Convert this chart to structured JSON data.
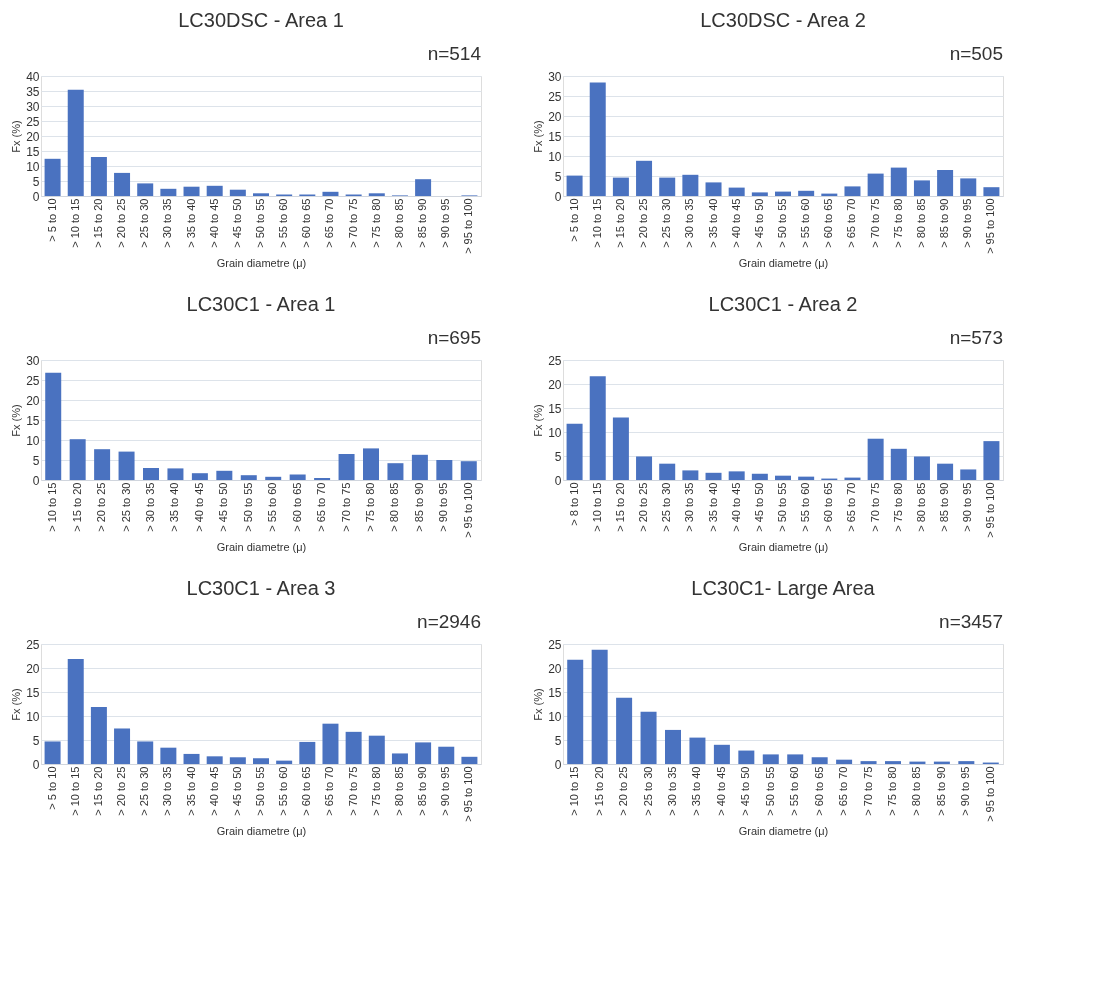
{
  "chart_data": [
    {
      "type": "bar",
      "title": "LC30DSC  - Area 1",
      "xlabel": "Grain diametre (μ)",
      "ylabel": "Fx (%)",
      "annotations": [
        "n=514"
      ],
      "color": "#4a72c0",
      "grid": "y",
      "ylim": [
        0,
        40
      ],
      "yticks": [
        0,
        5,
        10,
        15,
        20,
        25,
        30,
        35,
        40
      ],
      "categories": [
        "> 5 to 10",
        "> 10 to 15",
        "> 15 to 20",
        "> 20 to 25",
        "> 25 to 30",
        "> 30 to 35",
        "> 35 to 40",
        "> 40 to 45",
        "> 45 to 50",
        "> 50 to 55",
        "> 55 to 60",
        "> 60 to 65",
        "> 65 to 70",
        "> 70 to 75",
        "> 75 to 80",
        "> 80 to 85",
        "> 85 to 90",
        "> 90 to 95",
        "> 95 to 100"
      ],
      "values": [
        12.4,
        35.4,
        13.0,
        7.7,
        4.2,
        2.4,
        3.1,
        3.4,
        2.1,
        0.9,
        0.5,
        0.5,
        1.4,
        0.5,
        0.9,
        0.2,
        5.6,
        0,
        0.2
      ]
    },
    {
      "type": "bar",
      "title": "LC30DSC  - Area 2",
      "xlabel": "Grain diametre (μ)",
      "ylabel": "Fx (%)",
      "annotations": [
        "n=505"
      ],
      "color": "#4a72c0",
      "grid": "y",
      "ylim": [
        0,
        30
      ],
      "yticks": [
        0,
        5,
        10,
        15,
        20,
        25,
        30
      ],
      "categories": [
        "> 5 to 10",
        "> 10 to 15",
        "> 15 to 20",
        "> 20 to 25",
        "> 25 to 30",
        "> 30 to 35",
        "> 35 to 40",
        "> 40 to 45",
        "> 45 to 50",
        "> 50 to 55",
        "> 55 to 60",
        "> 60 to 65",
        "> 65 to 70",
        "> 70 to 75",
        "> 75 to 80",
        "> 80 to 85",
        "> 85 to 90",
        "> 90 to 95",
        "> 95 to 100"
      ],
      "values": [
        5.1,
        28.4,
        4.6,
        8.8,
        4.6,
        5.3,
        3.4,
        2.1,
        0.9,
        1.1,
        1.3,
        0.6,
        2.4,
        5.6,
        7.1,
        3.9,
        6.5,
        4.4,
        2.2
      ]
    },
    {
      "type": "bar",
      "title": "LC30C1 - Area 1",
      "xlabel": "Grain diametre (μ)",
      "ylabel": "Fx (%)",
      "annotations": [
        "n=695"
      ],
      "color": "#4a72c0",
      "grid": "y",
      "ylim": [
        0,
        30
      ],
      "yticks": [
        0,
        5,
        10,
        15,
        20,
        25,
        30
      ],
      "categories": [
        "> 10 to 15",
        "> 15 to 20",
        "> 20 to 25",
        "> 25 to 30",
        "> 30 to 35",
        "> 35 to 40",
        "> 40 to 45",
        "> 45 to 50",
        "> 50 to 55",
        "> 55 to 60",
        "> 60 to 65",
        "> 65 to 70",
        "> 70 to 75",
        "> 75 to 80",
        "> 80 to 85",
        "> 85 to 90",
        "> 90 to 95",
        "> 95 to 100"
      ],
      "values": [
        26.8,
        10.2,
        7.7,
        7.1,
        3.0,
        2.9,
        1.7,
        2.3,
        1.2,
        0.8,
        1.4,
        0.5,
        6.5,
        7.9,
        4.2,
        6.3,
        5.0,
        4.7
      ]
    },
    {
      "type": "bar",
      "title": "LC30C1 - Area 2",
      "xlabel": "Grain diametre (μ)",
      "ylabel": "Fx (%)",
      "annotations": [
        "n=573"
      ],
      "color": "#4a72c0",
      "grid": "y",
      "ylim": [
        0,
        25
      ],
      "yticks": [
        0,
        5,
        10,
        15,
        20,
        25
      ],
      "categories": [
        "> 8 to 10",
        "> 10 to 15",
        "> 15 to 20",
        "> 20 to 25",
        "> 25 to 30",
        "> 30 to 35",
        "> 35 to 40",
        "> 40 to 45",
        "> 45 to 50",
        "> 50 to 55",
        "> 55 to 60",
        "> 60 to 65",
        "> 65 to 70",
        "> 70 to 75",
        "> 75 to 80",
        "> 80 to 85",
        "> 85 to 90",
        "> 90 to 95",
        "> 95 to 100"
      ],
      "values": [
        11.7,
        21.6,
        13.0,
        4.9,
        3.4,
        2.0,
        1.5,
        1.8,
        1.3,
        0.9,
        0.7,
        0.3,
        0.5,
        8.6,
        6.5,
        4.9,
        3.4,
        2.2,
        8.1
      ]
    },
    {
      "type": "bar",
      "title": "LC30C1 - Area 3",
      "xlabel": "Grain diametre (μ)",
      "ylabel": "Fx (%)",
      "annotations": [
        "n=2946"
      ],
      "color": "#4a72c0",
      "grid": "y",
      "ylim": [
        0,
        25
      ],
      "yticks": [
        0,
        5,
        10,
        15,
        20,
        25
      ],
      "categories": [
        "> 5 to 10",
        "> 10 to 15",
        "> 15 to 20",
        "> 20 to 25",
        "> 25 to 30",
        "> 30 to 35",
        "> 35 to 40",
        "> 40 to 45",
        "> 45 to 50",
        "> 50 to 55",
        "> 55 to 60",
        "> 60 to 65",
        "> 65 to 70",
        "> 70 to 75",
        "> 75 to 80",
        "> 80 to 85",
        "> 85 to 90",
        "> 90 to 95",
        "> 95 to 100"
      ],
      "values": [
        4.7,
        21.9,
        11.9,
        7.4,
        4.7,
        3.4,
        2.1,
        1.6,
        1.4,
        1.2,
        0.7,
        4.6,
        8.4,
        6.7,
        5.9,
        2.2,
        4.5,
        3.6,
        1.5
      ]
    },
    {
      "type": "bar",
      "title": "LC30C1- Large Area",
      "xlabel": "Grain diametre (μ)",
      "ylabel": "Fx (%)",
      "annotations": [
        "n=3457"
      ],
      "color": "#4a72c0",
      "grid": "y",
      "ylim": [
        0,
        25
      ],
      "yticks": [
        0,
        5,
        10,
        15,
        20,
        25
      ],
      "categories": [
        "> 10 to 15",
        "> 15 to 20",
        "> 20 to 25",
        "> 25 to 30",
        "> 30 to 35",
        "> 35 to 40",
        "> 40 to 45",
        "> 45 to 50",
        "> 50 to 55",
        "> 55 to 60",
        "> 60 to 65",
        "> 65 to 70",
        "> 70 to 75",
        "> 75 to 80",
        "> 80 to 85",
        "> 85 to 90",
        "> 90 to 95",
        "> 95 to 100"
      ],
      "values": [
        21.7,
        23.8,
        13.8,
        10.9,
        7.1,
        5.5,
        4.0,
        2.8,
        2.0,
        2.0,
        1.4,
        0.9,
        0.6,
        0.6,
        0.5,
        0.5,
        0.6,
        0.3
      ]
    }
  ]
}
